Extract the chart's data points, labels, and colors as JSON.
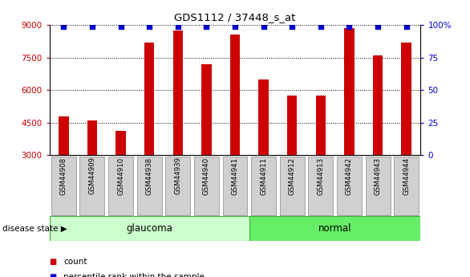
{
  "title": "GDS1112 / 37448_s_at",
  "categories": [
    "GSM44908",
    "GSM44909",
    "GSM44910",
    "GSM44938",
    "GSM44939",
    "GSM44940",
    "GSM44941",
    "GSM44911",
    "GSM44912",
    "GSM44913",
    "GSM44942",
    "GSM44943",
    "GSM44944"
  ],
  "bar_values": [
    4800,
    4600,
    4100,
    8200,
    8750,
    7200,
    8550,
    6500,
    5750,
    5750,
    8850,
    7600,
    8200
  ],
  "bar_color": "#cc0000",
  "percentile_color": "#0000cc",
  "ylim_left": [
    3000,
    9000
  ],
  "ylim_right": [
    0,
    100
  ],
  "yticks_left": [
    3000,
    4500,
    6000,
    7500,
    9000
  ],
  "yticks_right": [
    0,
    25,
    50,
    75,
    100
  ],
  "groups": [
    {
      "label": "glaucoma",
      "start": 0,
      "end": 7,
      "color": "#ccffcc"
    },
    {
      "label": "normal",
      "start": 7,
      "end": 13,
      "color": "#66ee66"
    }
  ],
  "group_label": "disease state",
  "legend_count_label": "count",
  "legend_percentile_label": "percentile rank within the sample",
  "bg_color": "#ffffff",
  "tick_label_color": "#cc0000",
  "right_tick_color": "#0000cc",
  "bar_bottom": 3000,
  "bar_width": 0.35,
  "label_bg_color": "#d0d0d0",
  "label_border_color": "#888888"
}
